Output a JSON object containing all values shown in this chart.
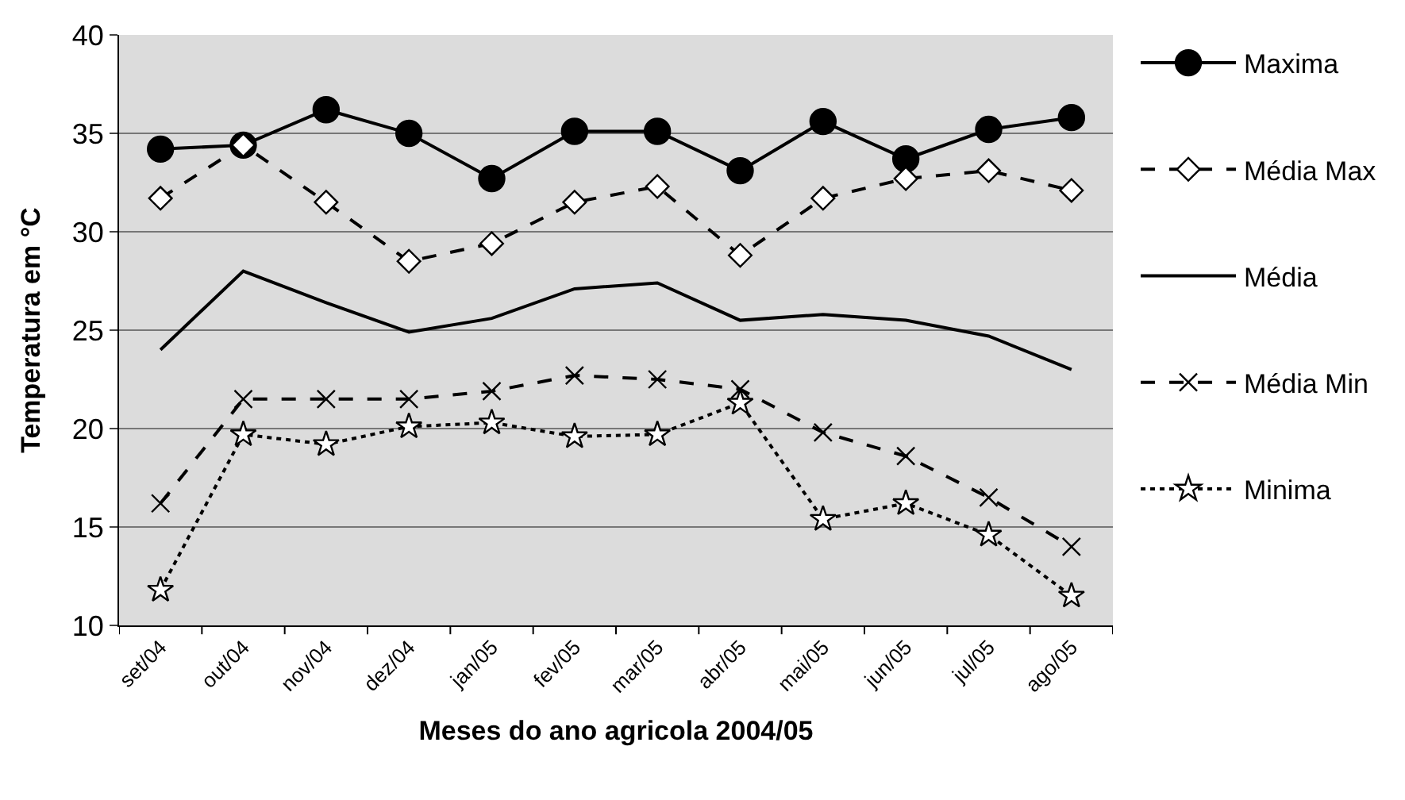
{
  "chart_data": {
    "type": "line",
    "xlabel": "Meses do ano agricola 2004/05",
    "ylabel": "Temperatura em °C",
    "categories": [
      "set/04",
      "out/04",
      "nov/04",
      "dez/04",
      "jan/05",
      "fev/05",
      "mar/05",
      "abr/05",
      "mai/05",
      "jun/05",
      "jul/05",
      "ago/05"
    ],
    "ylim": [
      10,
      40
    ],
    "yticks": [
      10,
      15,
      20,
      25,
      30,
      35,
      40
    ],
    "grid": "y",
    "legend": "right",
    "series": [
      {
        "name": "Maxima",
        "color": "#000000",
        "marker": "circle",
        "line_style": "solid",
        "values": [
          34.2,
          34.4,
          36.2,
          35.0,
          32.7,
          35.1,
          35.1,
          33.1,
          35.6,
          33.7,
          35.2,
          35.8
        ]
      },
      {
        "name": "Média Max",
        "color": "#000000",
        "marker": "diamond",
        "line_style": "dashed",
        "values": [
          31.7,
          34.4,
          31.5,
          28.5,
          29.4,
          31.5,
          32.3,
          28.8,
          31.7,
          32.7,
          33.1,
          32.1
        ]
      },
      {
        "name": "Média",
        "color": "#000000",
        "marker": "none",
        "line_style": "solid",
        "values": [
          24.0,
          28.0,
          26.4,
          24.9,
          25.6,
          27.1,
          27.4,
          25.5,
          25.8,
          25.5,
          24.7,
          23.0
        ]
      },
      {
        "name": "Média Min",
        "color": "#000000",
        "marker": "cross",
        "line_style": "dashed",
        "values": [
          16.2,
          21.5,
          21.5,
          21.5,
          21.9,
          22.7,
          22.5,
          22.0,
          19.8,
          18.6,
          16.5,
          14.0
        ]
      },
      {
        "name": "Minima",
        "color": "#000000",
        "marker": "star",
        "line_style": "dotted",
        "values": [
          11.8,
          19.7,
          19.2,
          20.1,
          20.3,
          19.6,
          19.7,
          21.3,
          15.4,
          16.2,
          14.6,
          11.5
        ]
      }
    ]
  }
}
